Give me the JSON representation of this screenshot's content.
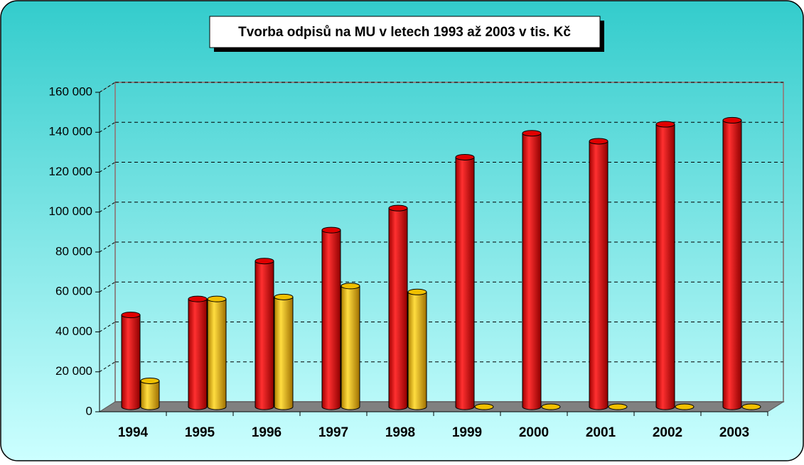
{
  "chart_data": {
    "type": "bar3d",
    "title": "Tvorba odpisů na MU v letech 1993 až 2003 v tis. Kč",
    "categories": [
      "1994",
      "1995",
      "1996",
      "1997",
      "1998",
      "1999",
      "2000",
      "2001",
      "2002",
      "2003"
    ],
    "series": [
      {
        "color": "#e00000",
        "values": [
          46000,
          54000,
          73000,
          88500,
          99500,
          125000,
          137000,
          133000,
          141500,
          143500
        ]
      },
      {
        "color": "#f0c000",
        "values": [
          13000,
          54000,
          55000,
          60500,
          57500,
          0,
          0,
          0,
          0,
          0
        ]
      }
    ],
    "ylim": [
      0,
      160000
    ],
    "yticks": [
      0,
      {
        "value": 20000,
        "label": "20 000"
      },
      {
        "value": 40000,
        "label": "40 000"
      },
      {
        "value": 60000,
        "label": "60 000"
      },
      {
        "value": 80000,
        "label": "80 000"
      },
      {
        "value": 100000,
        "label": "100 000"
      },
      {
        "value": 120000,
        "label": "120 000"
      },
      {
        "value": 140000,
        "label": "140 000"
      },
      {
        "value": 160000,
        "label": "160 000"
      }
    ],
    "grid": true
  }
}
